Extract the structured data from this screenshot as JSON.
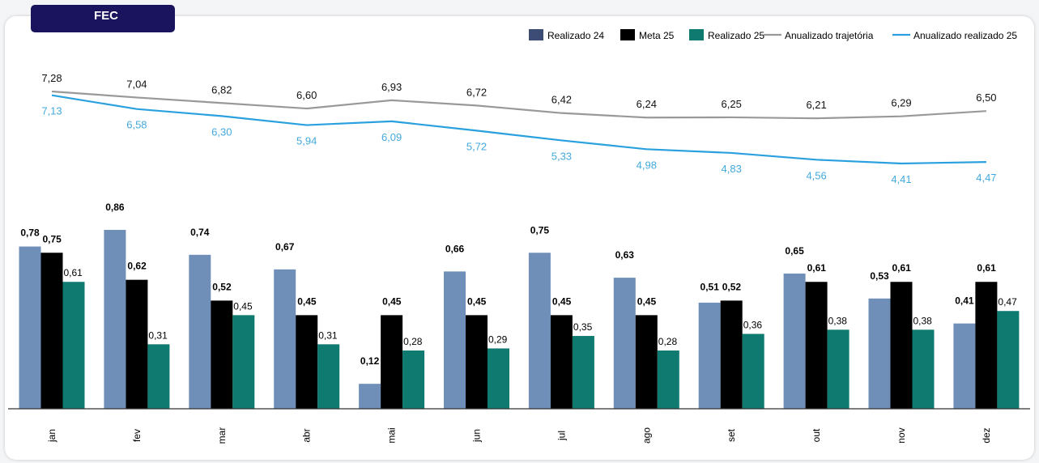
{
  "header": {
    "title": "FEC"
  },
  "legend": [
    {
      "label": "Realizado 24",
      "kind": "box",
      "color": "#3c4c74"
    },
    {
      "label": "Meta 25",
      "kind": "box",
      "color": "#000000"
    },
    {
      "label": "Realizado 25",
      "kind": "box",
      "color": "#0f7a70"
    },
    {
      "label": "Anualizado trajetória",
      "kind": "line",
      "color": "#999999"
    },
    {
      "label": "Anualizado realizado 25",
      "kind": "line",
      "color": "#2aa0de"
    }
  ],
  "colors": {
    "realizado24": "#6f8fb9",
    "meta25": "#000000",
    "realizado25": "#0f7a70",
    "trajetoria": "#999999",
    "anualizado": "#2aa0de",
    "anualizado_label": "#43a9dd"
  },
  "chart_data": {
    "type": "bar",
    "categories": [
      "jan",
      "fev",
      "mar",
      "abr",
      "mai",
      "jun",
      "jul",
      "ago",
      "set",
      "out",
      "nov",
      "dez"
    ],
    "series": [
      {
        "name": "Realizado 24",
        "type": "bar",
        "values": [
          0.78,
          0.86,
          0.74,
          0.67,
          0.12,
          0.66,
          0.75,
          0.63,
          0.51,
          0.65,
          0.53,
          0.41
        ],
        "labels": [
          "0,78",
          "0,86",
          "0,74",
          "0,67",
          "0,12",
          "0,66",
          "0,75",
          "0,63",
          "0,51",
          "0,65",
          "0,53",
          "0,41"
        ]
      },
      {
        "name": "Meta 25",
        "type": "bar",
        "values": [
          0.75,
          0.62,
          0.52,
          0.45,
          0.45,
          0.45,
          0.45,
          0.45,
          0.52,
          0.61,
          0.61,
          0.61
        ],
        "labels": [
          "0,75",
          "0,62",
          "0,52",
          "0,45",
          "0,45",
          "0,45",
          "0,45",
          "0,45",
          "0,52",
          "0,61",
          "0,61",
          "0,61"
        ]
      },
      {
        "name": "Realizado 25",
        "type": "bar",
        "values": [
          0.61,
          0.31,
          0.45,
          0.31,
          0.28,
          0.29,
          0.35,
          0.28,
          0.36,
          0.38,
          0.38,
          0.47
        ],
        "labels": [
          "0,61",
          "0,31",
          "0,45",
          "0,31",
          "0,28",
          "0,29",
          "0,35",
          "0,28",
          "0,36",
          "0,38",
          "0,38",
          "0,47"
        ]
      },
      {
        "name": "Anualizado trajetória",
        "type": "line",
        "values": [
          7.28,
          7.04,
          6.82,
          6.6,
          6.93,
          6.72,
          6.42,
          6.24,
          6.25,
          6.21,
          6.29,
          6.5
        ],
        "labels": [
          "7,28",
          "7,04",
          "6,82",
          "6,60",
          "6,93",
          "6,72",
          "6,42",
          "6,24",
          "6,25",
          "6,21",
          "6,29",
          "6,50"
        ]
      },
      {
        "name": "Anualizado realizado 25",
        "type": "line",
        "values": [
          7.13,
          6.58,
          6.3,
          5.94,
          6.09,
          5.72,
          5.33,
          4.98,
          4.83,
          4.56,
          4.41,
          4.47
        ],
        "labels": [
          "7,13",
          "6,58",
          "6,30",
          "5,94",
          "6,09",
          "5,72",
          "5,33",
          "4,98",
          "4,83",
          "4,56",
          "4,41",
          "4,47"
        ]
      }
    ],
    "legend_position": "top-right",
    "grid": false
  }
}
